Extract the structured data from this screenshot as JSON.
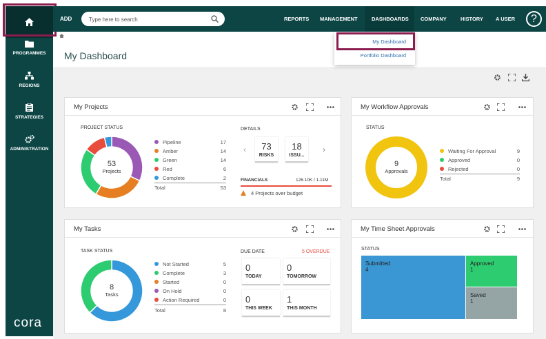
{
  "sidebar": {
    "items": [
      {
        "label": "PROGRAMMES",
        "icon": "folder-icon"
      },
      {
        "label": "REGIONS",
        "icon": "sitemap-icon"
      },
      {
        "label": "STRATEGIES",
        "icon": "clipboard-icon"
      },
      {
        "label": "ADMINISTRATION",
        "icon": "gears-icon"
      }
    ],
    "logo": "cora"
  },
  "topbar": {
    "add": "ADD",
    "search_placeholder": "Type here to search",
    "menu": [
      "REPORTS",
      "MANAGEMENT",
      "DASHBOARDS",
      "COMPANY",
      "HISTORY",
      "A USER"
    ],
    "help": "?"
  },
  "dropdown": {
    "items": [
      "My Dashboard",
      "Portfolio Dashboard"
    ]
  },
  "page": {
    "title": "My Dashboard"
  },
  "projects": {
    "title": "My Projects",
    "status_label": "PROJECT STATUS",
    "total": 53,
    "center_label": "Projects",
    "legend": [
      {
        "name": "Pipeline",
        "value": 17,
        "color": "#9b59b6"
      },
      {
        "name": "Amber",
        "value": 14,
        "color": "#e67e22"
      },
      {
        "name": "Green",
        "value": 14,
        "color": "#2ecc71"
      },
      {
        "name": "Red",
        "value": 6,
        "color": "#e74c3c"
      },
      {
        "name": "Complete",
        "value": 2,
        "color": "#3498db"
      }
    ],
    "total_label": "Total",
    "total_value": 53,
    "details_label": "DETAILS",
    "risks": {
      "value": "73",
      "label": "RISKS"
    },
    "issues": {
      "value": "18",
      "label": "ISSU..."
    },
    "financials_label": "FINANCIALS",
    "financials_value": "126.10K / 1.11M",
    "warning": "4 Projects over budget"
  },
  "workflow": {
    "title": "My Workflow Approvals",
    "status_label": "STATUS",
    "total": 9,
    "center_label": "Approvals",
    "legend": [
      {
        "name": "Waiting For Approval",
        "value": 9,
        "color": "#f1c40f"
      },
      {
        "name": "Approved",
        "value": 0,
        "color": "#2ecc71"
      },
      {
        "name": "Rejected",
        "value": 0,
        "color": "#e74c3c"
      }
    ],
    "total_label": "Total",
    "total_value": 9
  },
  "tasks": {
    "title": "My Tasks",
    "status_label": "TASK STATUS",
    "total": 8,
    "center_label": "Tasks",
    "legend": [
      {
        "name": "Not Started",
        "value": 5,
        "color": "#3498db"
      },
      {
        "name": "Complete",
        "value": 3,
        "color": "#2ecc71"
      },
      {
        "name": "Started",
        "value": 0,
        "color": "#e67e22"
      },
      {
        "name": "On Hold",
        "value": 0,
        "color": "#9b59b6"
      },
      {
        "name": "Action Required",
        "value": 0,
        "color": "#e74c3c"
      }
    ],
    "total_label": "Total",
    "total_value": 8,
    "due_label": "DUE DATE",
    "overdue": "5 OVERDUE",
    "due": [
      {
        "value": "0",
        "label": "TODAY"
      },
      {
        "value": "0",
        "label": "TOMORROW"
      },
      {
        "value": "0",
        "label": "THIS WEEK"
      },
      {
        "value": "1",
        "label": "THIS MONTH"
      }
    ]
  },
  "timesheet": {
    "title": "My Time Sheet Approvals",
    "status_label": "STATUS",
    "blocks": [
      {
        "name": "Submitted",
        "value": "4",
        "color": "#3b97d3"
      },
      {
        "name": "Approved",
        "value": "1",
        "color": "#2ecc71"
      },
      {
        "name": "Saved",
        "value": "1",
        "color": "#95a5a6"
      }
    ]
  }
}
